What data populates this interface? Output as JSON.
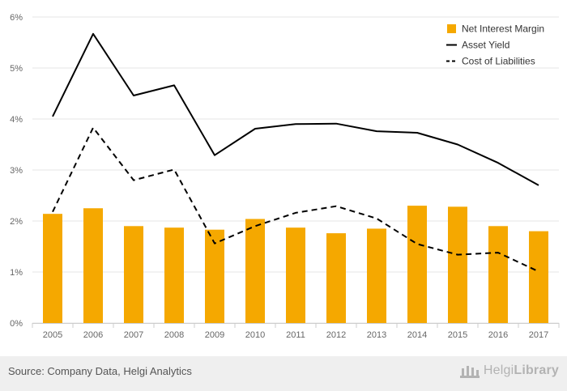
{
  "chart_data": {
    "type": "bar",
    "categories": [
      "2005",
      "2006",
      "2007",
      "2008",
      "2009",
      "2010",
      "2011",
      "2012",
      "2013",
      "2014",
      "2015",
      "2016",
      "2017"
    ],
    "series": [
      {
        "name": "Net Interest Margin",
        "kind": "bar",
        "color": "#f5a800",
        "values": [
          2.14,
          2.25,
          1.9,
          1.87,
          1.83,
          2.04,
          1.87,
          1.76,
          1.85,
          2.3,
          2.28,
          1.9,
          1.8
        ]
      },
      {
        "name": "Asset Yield",
        "kind": "line",
        "dash": "solid",
        "color": "#000000",
        "values": [
          4.05,
          5.67,
          4.46,
          4.66,
          3.29,
          3.81,
          3.9,
          3.91,
          3.76,
          3.73,
          3.5,
          3.14,
          2.7
        ]
      },
      {
        "name": "Cost of Liabilities",
        "kind": "line",
        "dash": "dashed",
        "color": "#000000",
        "values": [
          2.18,
          3.83,
          2.8,
          3.01,
          1.56,
          1.9,
          2.16,
          2.29,
          2.05,
          1.55,
          1.34,
          1.38,
          1.01
        ]
      }
    ],
    "yticks": [
      "0%",
      "1%",
      "2%",
      "3%",
      "4%",
      "5%",
      "6%"
    ],
    "ylim": [
      0,
      6
    ],
    "grid": true,
    "legend_position": "top-right"
  },
  "footer": {
    "source": "Source: Company Data, Helgi Analytics",
    "brand_light": "Helgi",
    "brand_bold": "Library"
  }
}
